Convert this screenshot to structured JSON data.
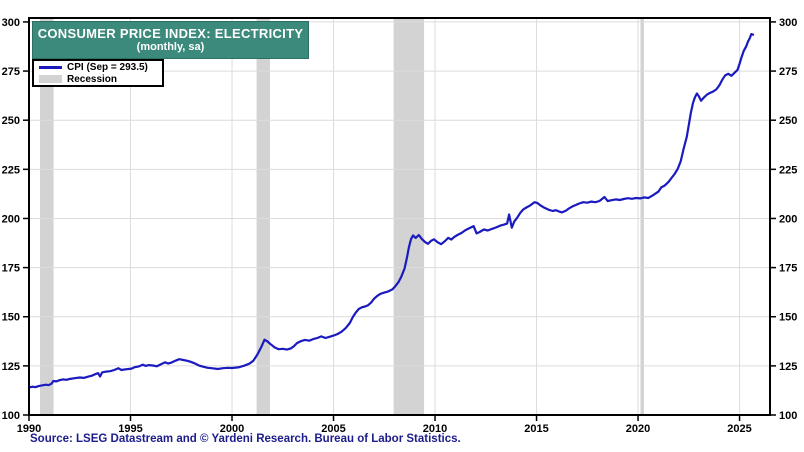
{
  "header": {
    "title": "CONSUMER PRICE INDEX: ELECTRICITY",
    "subtitle": "(monthly, sa)"
  },
  "legend": {
    "cpi_label": "CPI (Sep = 293.5)",
    "recession_label": "Recession"
  },
  "source": "Source: LSEG Datastream and © Yardeni Research. Bureau of Labor Statistics.",
  "colors": {
    "line": "#1a1abf",
    "recession": "#d3d3d3",
    "grid": "#dcdcdc",
    "axis": "#000000",
    "title_bg": "#3c8a7b",
    "title_text": "#ffffff",
    "source_text": "#1c1c8c"
  },
  "chart_data": {
    "type": "line",
    "title": "CONSUMER PRICE INDEX: ELECTRICITY",
    "subtitle": "(monthly, sa)",
    "xlabel": "",
    "ylabel": "",
    "x_axis": {
      "min": 1990,
      "max": 2026.5,
      "tick_labels": [
        "1990",
        "1995",
        "2000",
        "2005",
        "2010",
        "2015",
        "2020",
        "2025"
      ],
      "tick_values": [
        1990,
        1995,
        2000,
        2005,
        2010,
        2015,
        2020,
        2025
      ]
    },
    "y_axis": {
      "min": 100,
      "max": 302,
      "tick_labels": [
        "100",
        "125",
        "150",
        "175",
        "200",
        "225",
        "250",
        "275",
        "300"
      ],
      "tick_values": [
        100,
        125,
        150,
        175,
        200,
        225,
        250,
        275,
        300
      ],
      "label_sides": "both"
    },
    "grid": true,
    "legend_position": "top-left",
    "recession_bands": [
      [
        1990.54,
        1991.21
      ],
      [
        2001.21,
        2001.87
      ],
      [
        2007.96,
        2009.46
      ],
      [
        2020.12,
        2020.29
      ]
    ],
    "series": [
      {
        "name": "CPI (Sep = 293.5)",
        "color": "#1a1abf",
        "last_point_label": "Sep = 293.5",
        "points": [
          [
            1990.0,
            114.0
          ],
          [
            1990.17,
            114.4
          ],
          [
            1990.33,
            114.2
          ],
          [
            1990.5,
            114.8
          ],
          [
            1990.67,
            115.1
          ],
          [
            1990.83,
            115.4
          ],
          [
            1990.95,
            115.2
          ],
          [
            1991.1,
            115.8
          ],
          [
            1991.2,
            117.3
          ],
          [
            1991.35,
            117.1
          ],
          [
            1991.5,
            117.7
          ],
          [
            1991.67,
            118.1
          ],
          [
            1991.83,
            117.9
          ],
          [
            1992.0,
            118.3
          ],
          [
            1992.25,
            118.7
          ],
          [
            1992.5,
            119.1
          ],
          [
            1992.7,
            118.9
          ],
          [
            1992.9,
            119.5
          ],
          [
            1993.1,
            120.0
          ],
          [
            1993.25,
            120.7
          ],
          [
            1993.4,
            121.3
          ],
          [
            1993.5,
            119.6
          ],
          [
            1993.6,
            121.7
          ],
          [
            1993.8,
            122.1
          ],
          [
            1994.0,
            122.3
          ],
          [
            1994.2,
            122.9
          ],
          [
            1994.4,
            123.8
          ],
          [
            1994.55,
            122.9
          ],
          [
            1994.75,
            123.2
          ],
          [
            1994.9,
            123.4
          ],
          [
            1995.05,
            123.6
          ],
          [
            1995.2,
            124.3
          ],
          [
            1995.4,
            124.7
          ],
          [
            1995.6,
            125.6
          ],
          [
            1995.75,
            125.0
          ],
          [
            1995.9,
            125.4
          ],
          [
            1996.1,
            125.2
          ],
          [
            1996.3,
            124.8
          ],
          [
            1996.5,
            125.8
          ],
          [
            1996.7,
            126.8
          ],
          [
            1996.85,
            126.2
          ],
          [
            1997.0,
            126.6
          ],
          [
            1997.2,
            127.6
          ],
          [
            1997.4,
            128.4
          ],
          [
            1997.6,
            128.0
          ],
          [
            1997.8,
            127.6
          ],
          [
            1997.95,
            127.1
          ],
          [
            1998.15,
            126.3
          ],
          [
            1998.4,
            125.1
          ],
          [
            1998.6,
            124.5
          ],
          [
            1998.8,
            124.0
          ],
          [
            1999.0,
            123.8
          ],
          [
            1999.3,
            123.4
          ],
          [
            1999.55,
            123.8
          ],
          [
            1999.8,
            124.0
          ],
          [
            2000.0,
            123.9
          ],
          [
            2000.3,
            124.2
          ],
          [
            2000.6,
            125.1
          ],
          [
            2000.85,
            126.1
          ],
          [
            2001.05,
            127.6
          ],
          [
            2001.25,
            130.8
          ],
          [
            2001.45,
            134.8
          ],
          [
            2001.6,
            138.3
          ],
          [
            2001.75,
            137.4
          ],
          [
            2001.9,
            136.0
          ],
          [
            2002.1,
            134.4
          ],
          [
            2002.3,
            133.5
          ],
          [
            2002.5,
            133.7
          ],
          [
            2002.7,
            133.3
          ],
          [
            2002.9,
            133.9
          ],
          [
            2003.05,
            135.0
          ],
          [
            2003.2,
            136.6
          ],
          [
            2003.4,
            137.6
          ],
          [
            2003.6,
            138.2
          ],
          [
            2003.8,
            137.8
          ],
          [
            2004.0,
            138.6
          ],
          [
            2004.2,
            139.2
          ],
          [
            2004.4,
            140.0
          ],
          [
            2004.6,
            139.2
          ],
          [
            2004.8,
            139.8
          ],
          [
            2005.0,
            140.4
          ],
          [
            2005.2,
            141.2
          ],
          [
            2005.4,
            142.4
          ],
          [
            2005.6,
            144.2
          ],
          [
            2005.8,
            146.8
          ],
          [
            2005.95,
            149.8
          ],
          [
            2006.1,
            152.2
          ],
          [
            2006.25,
            154.0
          ],
          [
            2006.4,
            154.8
          ],
          [
            2006.55,
            155.2
          ],
          [
            2006.7,
            155.8
          ],
          [
            2006.85,
            157.2
          ],
          [
            2007.0,
            159.2
          ],
          [
            2007.15,
            160.6
          ],
          [
            2007.3,
            161.6
          ],
          [
            2007.5,
            162.3
          ],
          [
            2007.7,
            162.9
          ],
          [
            2007.9,
            163.9
          ],
          [
            2008.05,
            165.6
          ],
          [
            2008.2,
            167.6
          ],
          [
            2008.35,
            170.6
          ],
          [
            2008.5,
            174.6
          ],
          [
            2008.62,
            180.2
          ],
          [
            2008.72,
            185.6
          ],
          [
            2008.82,
            189.6
          ],
          [
            2008.92,
            191.4
          ],
          [
            2009.05,
            190.1
          ],
          [
            2009.2,
            191.6
          ],
          [
            2009.35,
            189.6
          ],
          [
            2009.5,
            188.1
          ],
          [
            2009.65,
            187.1
          ],
          [
            2009.8,
            188.6
          ],
          [
            2009.95,
            189.4
          ],
          [
            2010.1,
            188.1
          ],
          [
            2010.3,
            186.9
          ],
          [
            2010.5,
            188.6
          ],
          [
            2010.65,
            190.1
          ],
          [
            2010.8,
            189.3
          ],
          [
            2010.95,
            190.6
          ],
          [
            2011.1,
            191.6
          ],
          [
            2011.3,
            192.6
          ],
          [
            2011.5,
            194.1
          ],
          [
            2011.7,
            195.1
          ],
          [
            2011.9,
            196.1
          ],
          [
            2012.05,
            192.4
          ],
          [
            2012.2,
            193.1
          ],
          [
            2012.4,
            194.4
          ],
          [
            2012.6,
            193.9
          ],
          [
            2012.8,
            194.7
          ],
          [
            2013.0,
            195.4
          ],
          [
            2013.2,
            196.3
          ],
          [
            2013.4,
            196.9
          ],
          [
            2013.55,
            197.4
          ],
          [
            2013.65,
            202.0
          ],
          [
            2013.78,
            195.3
          ],
          [
            2013.9,
            198.4
          ],
          [
            2014.05,
            200.4
          ],
          [
            2014.2,
            202.9
          ],
          [
            2014.35,
            204.6
          ],
          [
            2014.5,
            205.6
          ],
          [
            2014.7,
            206.7
          ],
          [
            2014.9,
            208.3
          ],
          [
            2015.05,
            207.8
          ],
          [
            2015.2,
            206.6
          ],
          [
            2015.4,
            205.4
          ],
          [
            2015.6,
            204.4
          ],
          [
            2015.8,
            203.8
          ],
          [
            2015.95,
            204.2
          ],
          [
            2016.1,
            203.6
          ],
          [
            2016.25,
            203.1
          ],
          [
            2016.45,
            204.0
          ],
          [
            2016.6,
            205.1
          ],
          [
            2016.8,
            206.3
          ],
          [
            2016.95,
            206.9
          ],
          [
            2017.1,
            207.6
          ],
          [
            2017.3,
            208.3
          ],
          [
            2017.5,
            208.0
          ],
          [
            2017.7,
            208.6
          ],
          [
            2017.9,
            208.3
          ],
          [
            2018.1,
            208.9
          ],
          [
            2018.35,
            210.9
          ],
          [
            2018.5,
            208.9
          ],
          [
            2018.7,
            209.3
          ],
          [
            2018.9,
            209.7
          ],
          [
            2019.1,
            209.4
          ],
          [
            2019.3,
            209.9
          ],
          [
            2019.5,
            210.3
          ],
          [
            2019.7,
            210.0
          ],
          [
            2019.9,
            210.4
          ],
          [
            2020.1,
            210.2
          ],
          [
            2020.3,
            210.7
          ],
          [
            2020.5,
            210.4
          ],
          [
            2020.7,
            211.6
          ],
          [
            2020.85,
            212.6
          ],
          [
            2021.0,
            213.6
          ],
          [
            2021.15,
            215.9
          ],
          [
            2021.3,
            216.6
          ],
          [
            2021.5,
            218.6
          ],
          [
            2021.65,
            220.6
          ],
          [
            2021.8,
            222.6
          ],
          [
            2021.95,
            225.1
          ],
          [
            2022.1,
            229.1
          ],
          [
            2022.25,
            235.6
          ],
          [
            2022.4,
            241.6
          ],
          [
            2022.5,
            247.6
          ],
          [
            2022.6,
            253.6
          ],
          [
            2022.7,
            258.6
          ],
          [
            2022.8,
            261.6
          ],
          [
            2022.9,
            263.6
          ],
          [
            2023.0,
            262.1
          ],
          [
            2023.1,
            259.9
          ],
          [
            2023.25,
            261.6
          ],
          [
            2023.4,
            263.1
          ],
          [
            2023.55,
            263.9
          ],
          [
            2023.7,
            264.6
          ],
          [
            2023.85,
            265.6
          ],
          [
            2024.0,
            267.6
          ],
          [
            2024.15,
            270.6
          ],
          [
            2024.3,
            272.9
          ],
          [
            2024.45,
            273.6
          ],
          [
            2024.6,
            272.6
          ],
          [
            2024.75,
            274.1
          ],
          [
            2024.9,
            275.6
          ],
          [
            2025.0,
            278.6
          ],
          [
            2025.1,
            282.1
          ],
          [
            2025.2,
            285.1
          ],
          [
            2025.33,
            287.6
          ],
          [
            2025.42,
            290.1
          ],
          [
            2025.5,
            291.6
          ],
          [
            2025.58,
            293.8
          ],
          [
            2025.67,
            293.5
          ]
        ]
      }
    ]
  }
}
